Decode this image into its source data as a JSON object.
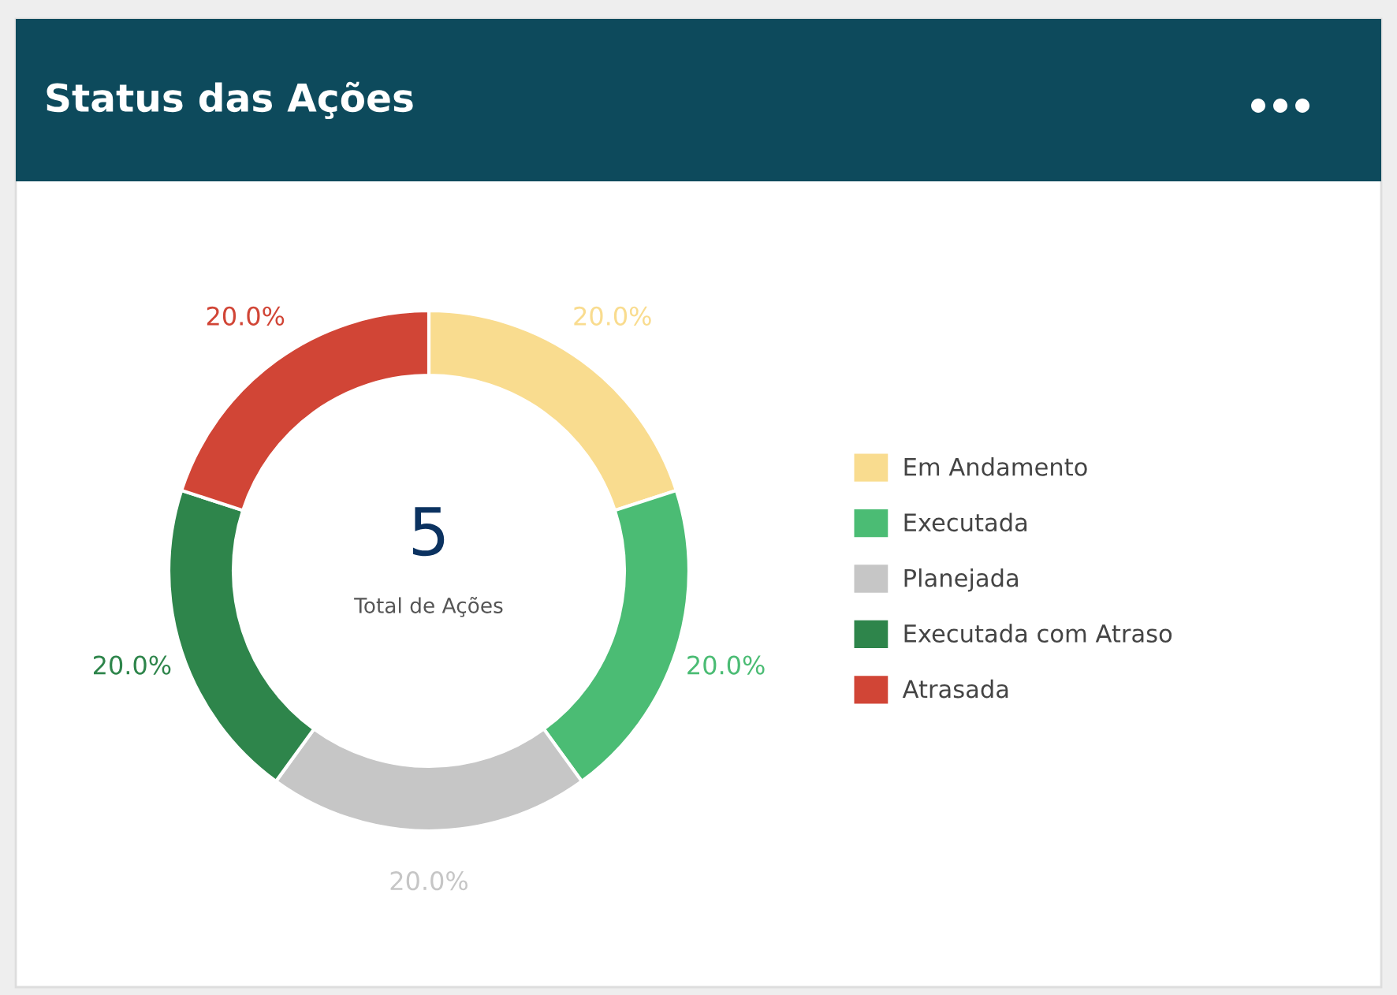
{
  "chart_data": {
    "type": "donut",
    "title": "Status das Ações",
    "categories": [
      "Em Andamento",
      "Executada",
      "Planejada",
      "Executada com Atraso",
      "Atrasada"
    ],
    "values": [
      20,
      20,
      20,
      20,
      20
    ],
    "colors": [
      "#f9dc8f",
      "#4bbc74",
      "#c6c6c6",
      "#2e854b",
      "#d14536"
    ],
    "value_labels": [
      "20.0%",
      "20.0%",
      "20.0%",
      "20.0%",
      "20.0%"
    ],
    "annotations": [
      "5",
      "Total de Ações"
    ],
    "legend": "right"
  }
}
